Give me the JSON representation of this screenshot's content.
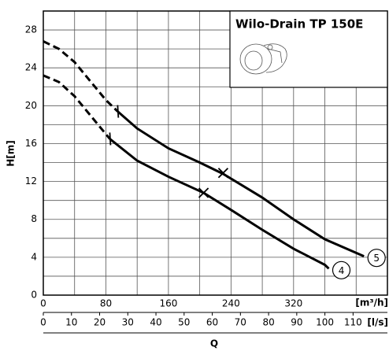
{
  "chart_data": {
    "type": "line",
    "title": "Wilo-Drain TP 150E",
    "x_label": "[m³/h]",
    "x2_label": "[l/s]",
    "x_title": "Q",
    "y_label": "H[m]",
    "xlim": [
      0,
      440
    ],
    "xticks": [
      0,
      80,
      160,
      240,
      320
    ],
    "xminor": [
      40,
      120,
      200,
      280,
      360,
      400,
      440
    ],
    "x2lim": [
      0,
      122.2
    ],
    "x2ticks": [
      0,
      10,
      20,
      30,
      40,
      50,
      60,
      70,
      80,
      90,
      100,
      110
    ],
    "ylim": [
      0,
      30
    ],
    "yticks": [
      0,
      4,
      8,
      12,
      16,
      20,
      24,
      28
    ],
    "yminor": [
      2,
      6,
      10,
      14,
      18,
      22,
      26,
      30
    ],
    "grid": true,
    "color": "#000000",
    "series": [
      {
        "name": "5",
        "segments": [
          {
            "style": "dashed",
            "x": [
              0,
              20,
              40,
              60,
              80,
              95
            ],
            "values": [
              26.8,
              26.0,
              24.6,
              22.6,
              20.6,
              19.4
            ]
          },
          {
            "style": "solid",
            "x": [
              95,
              120,
              160,
              200,
              230,
              280,
              320,
              360,
              410
            ],
            "values": [
              19.4,
              17.6,
              15.5,
              14.0,
              12.8,
              10.3,
              8.0,
              5.9,
              4.1
            ]
          }
        ],
        "markers": [
          {
            "shape": "tick",
            "x": 95,
            "y": 19.4
          },
          {
            "shape": "x",
            "x": 230,
            "y": 12.9
          }
        ]
      },
      {
        "name": "4",
        "segments": [
          {
            "style": "dashed",
            "x": [
              0,
              20,
              40,
              60,
              85
            ],
            "values": [
              23.2,
              22.5,
              21.0,
              19.0,
              16.5
            ]
          },
          {
            "style": "solid",
            "x": [
              85,
              120,
              160,
              205,
              240,
              280,
              320,
              360,
              365
            ],
            "values": [
              16.5,
              14.2,
              12.5,
              10.8,
              9.0,
              6.9,
              4.9,
              3.2,
              2.8
            ]
          }
        ],
        "markers": [
          {
            "shape": "tick",
            "x": 85,
            "y": 16.5
          },
          {
            "shape": "x",
            "x": 205,
            "y": 10.8
          }
        ]
      }
    ]
  }
}
